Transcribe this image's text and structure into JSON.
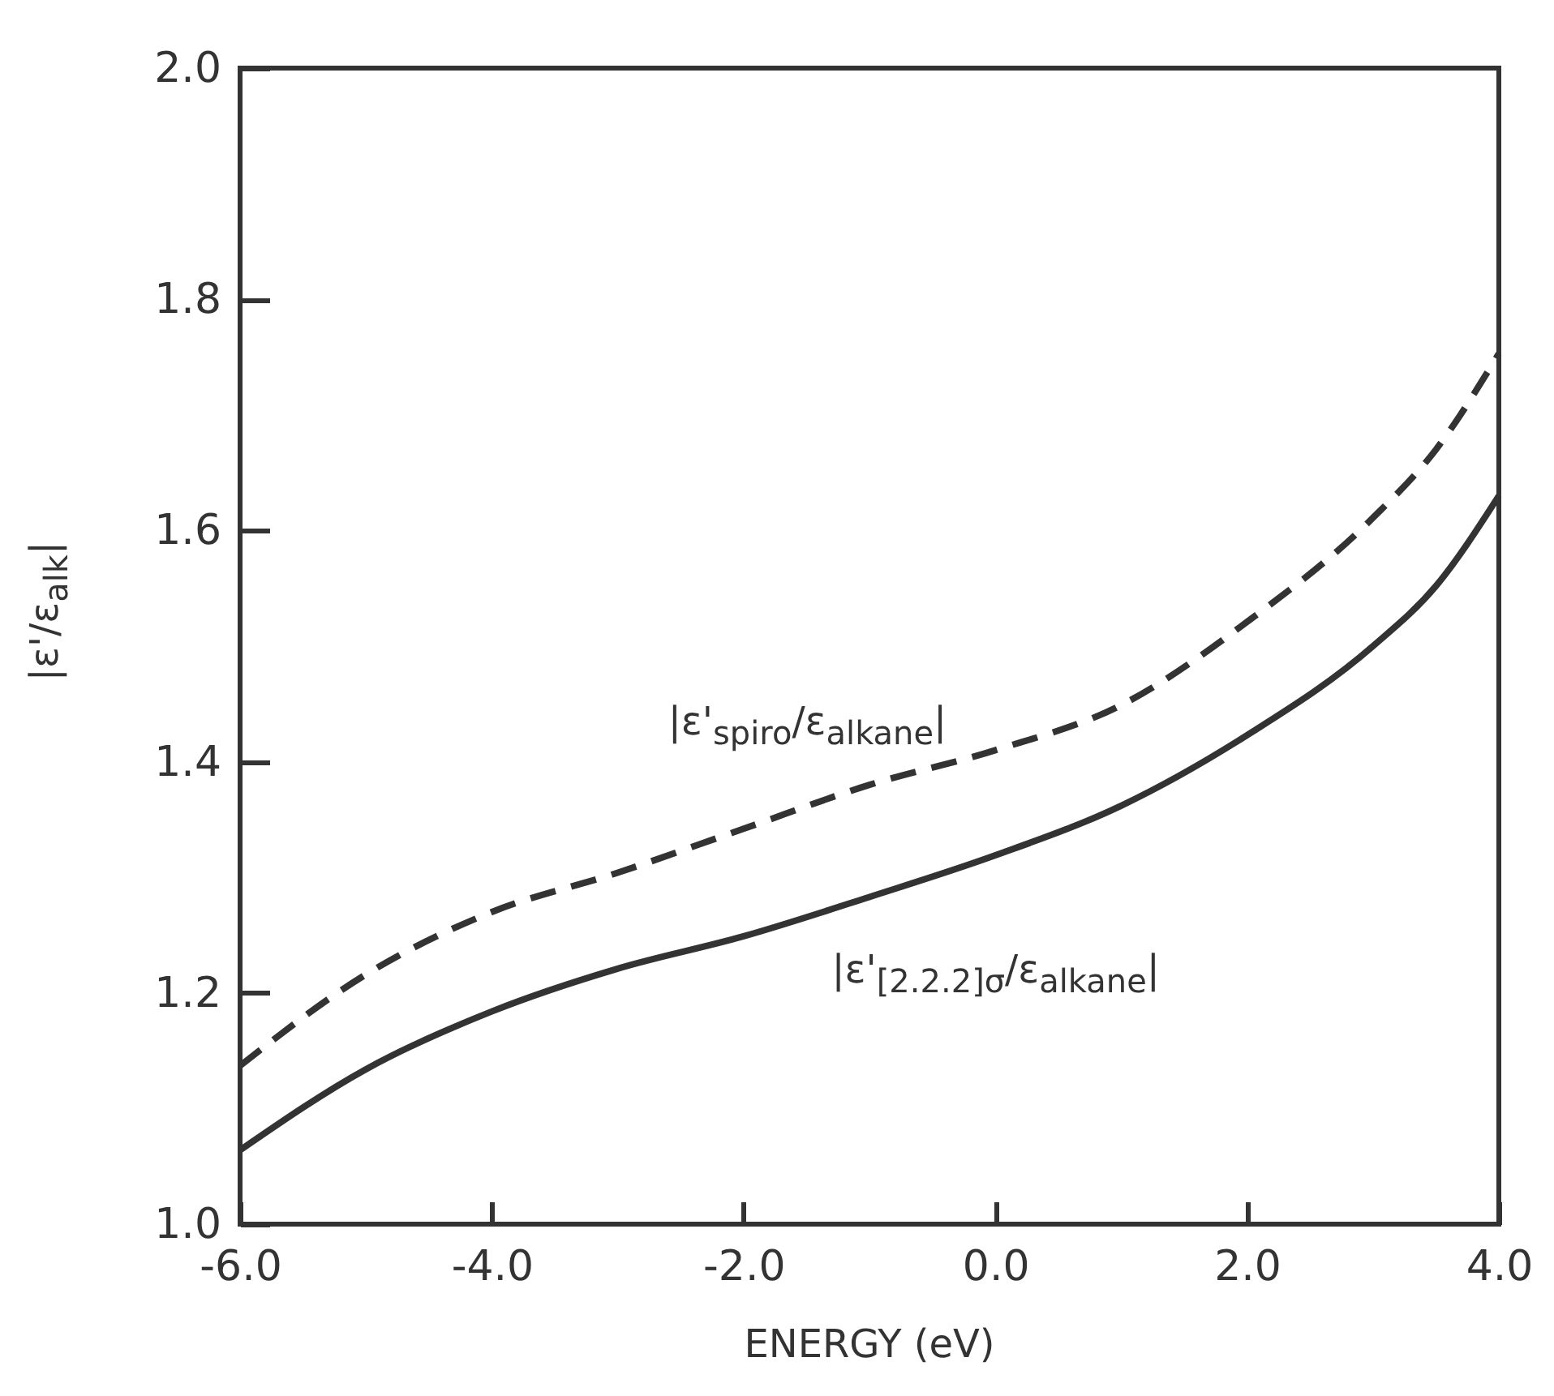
{
  "chart_data": {
    "type": "line",
    "xlabel": "ENERGY (eV)",
    "ylabel": "|ε'/ε$_{alk}$|",
    "x": [
      -6,
      -5,
      -4,
      -3,
      -2,
      -1,
      0,
      1,
      2,
      3,
      3.5,
      4
    ],
    "series": [
      {
        "name": "|ε'$_{spiro}$/ε$_{alkane}$|",
        "color": "#333333",
        "line_style": "dashed",
        "values": [
          1.137,
          1.216,
          1.27,
          1.304,
          1.342,
          1.38,
          1.41,
          1.449,
          1.521,
          1.611,
          1.67,
          1.753
        ]
      },
      {
        "name": "|ε'$_{[2.2.2]σ}$/ε$_{alkane}$|",
        "color": "#333333",
        "line_style": "solid",
        "values": [
          1.064,
          1.134,
          1.184,
          1.221,
          1.249,
          1.283,
          1.319,
          1.362,
          1.423,
          1.5,
          1.552,
          1.63
        ]
      }
    ],
    "xlim": [
      -6,
      4
    ],
    "ylim": [
      1,
      2
    ],
    "xticks": [
      {
        "value": -6,
        "label": "-6.0"
      },
      {
        "value": -4,
        "label": "-4.0"
      },
      {
        "value": -2,
        "label": "-2.0"
      },
      {
        "value": 0,
        "label": "0.0"
      },
      {
        "value": 2,
        "label": "2.0"
      },
      {
        "value": 4,
        "label": "4.0"
      }
    ],
    "yticks": [
      {
        "value": 1,
        "label": "1.0"
      },
      {
        "value": 1.2,
        "label": "1.2"
      },
      {
        "value": 1.4,
        "label": "1.4"
      },
      {
        "value": 1.6,
        "label": "1.6"
      },
      {
        "value": 1.8,
        "label": "1.8"
      },
      {
        "value": 2,
        "label": "2.0"
      }
    ],
    "grid": false,
    "legend": false
  }
}
